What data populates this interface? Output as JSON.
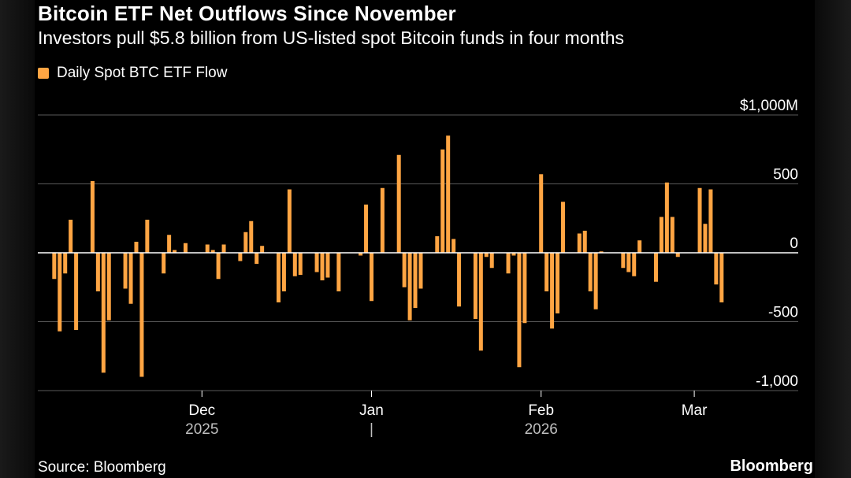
{
  "header": {
    "title": "Bitcoin ETF Net Outflows Since November",
    "subtitle": "Investors pull $5.8 billion from US-listed spot Bitcoin funds in four months"
  },
  "legend": {
    "label": "Daily Spot BTC ETF Flow"
  },
  "footer": {
    "source": "Source: Bloomberg",
    "brand": "Bloomberg"
  },
  "colors": {
    "bar": "#ffa543",
    "grid": "#5a5a5a",
    "zero": "#ffffff",
    "text": "#ffffff",
    "background": "#000000"
  },
  "chart_data": {
    "type": "bar",
    "title": "Bitcoin ETF Net Outflows Since November",
    "ylabel": "Daily Spot BTC ETF Flow ($M)",
    "ylim": [
      -1000,
      1000
    ],
    "y_ticks": [
      {
        "value": 1000,
        "label": "$1,000M"
      },
      {
        "value": 500,
        "label": "500"
      },
      {
        "value": 0,
        "label": "0"
      },
      {
        "value": -500,
        "label": "-500"
      },
      {
        "value": -1000,
        "label": "-1,000"
      }
    ],
    "x_ticks": [
      {
        "label": "Dec",
        "sublabel": "2025",
        "index": 28
      },
      {
        "label": "Jan",
        "sublabel": "|",
        "index": 59
      },
      {
        "label": "Feb",
        "sublabel": "2026",
        "index": 90
      },
      {
        "label": "Mar",
        "sublabel": "",
        "index": 118
      }
    ],
    "x_range": [
      -2,
      137
    ],
    "points": [
      {
        "i": 1,
        "v": -190
      },
      {
        "i": 2,
        "v": -570
      },
      {
        "i": 3,
        "v": -150
      },
      {
        "i": 4,
        "v": 240
      },
      {
        "i": 5,
        "v": -560
      },
      {
        "i": 8,
        "v": 520
      },
      {
        "i": 9,
        "v": -280
      },
      {
        "i": 10,
        "v": -870
      },
      {
        "i": 11,
        "v": -490
      },
      {
        "i": 14,
        "v": -260
      },
      {
        "i": 15,
        "v": -370
      },
      {
        "i": 16,
        "v": 80
      },
      {
        "i": 17,
        "v": -900
      },
      {
        "i": 18,
        "v": 240
      },
      {
        "i": 21,
        "v": -150
      },
      {
        "i": 22,
        "v": 130
      },
      {
        "i": 23,
        "v": 20
      },
      {
        "i": 25,
        "v": 70
      },
      {
        "i": 29,
        "v": 60
      },
      {
        "i": 30,
        "v": 20
      },
      {
        "i": 31,
        "v": -190
      },
      {
        "i": 32,
        "v": 60
      },
      {
        "i": 35,
        "v": -60
      },
      {
        "i": 36,
        "v": 150
      },
      {
        "i": 37,
        "v": 230
      },
      {
        "i": 38,
        "v": -80
      },
      {
        "i": 39,
        "v": 50
      },
      {
        "i": 42,
        "v": -360
      },
      {
        "i": 43,
        "v": -280
      },
      {
        "i": 44,
        "v": 460
      },
      {
        "i": 45,
        "v": -170
      },
      {
        "i": 46,
        "v": -160
      },
      {
        "i": 49,
        "v": -140
      },
      {
        "i": 50,
        "v": -200
      },
      {
        "i": 51,
        "v": -180
      },
      {
        "i": 53,
        "v": -280
      },
      {
        "i": 57,
        "v": -20
      },
      {
        "i": 58,
        "v": 350
      },
      {
        "i": 59,
        "v": -350
      },
      {
        "i": 61,
        "v": 470
      },
      {
        "i": 64,
        "v": 710
      },
      {
        "i": 65,
        "v": -250
      },
      {
        "i": 66,
        "v": -490
      },
      {
        "i": 67,
        "v": -400
      },
      {
        "i": 68,
        "v": -260
      },
      {
        "i": 71,
        "v": 120
      },
      {
        "i": 72,
        "v": 750
      },
      {
        "i": 73,
        "v": 850
      },
      {
        "i": 74,
        "v": 100
      },
      {
        "i": 75,
        "v": -390
      },
      {
        "i": 78,
        "v": -480
      },
      {
        "i": 79,
        "v": -710
      },
      {
        "i": 80,
        "v": -30
      },
      {
        "i": 81,
        "v": -110
      },
      {
        "i": 84,
        "v": -150
      },
      {
        "i": 85,
        "v": -20
      },
      {
        "i": 86,
        "v": -830
      },
      {
        "i": 87,
        "v": -510
      },
      {
        "i": 90,
        "v": 570
      },
      {
        "i": 91,
        "v": -280
      },
      {
        "i": 92,
        "v": -550
      },
      {
        "i": 93,
        "v": -440
      },
      {
        "i": 94,
        "v": 370
      },
      {
        "i": 97,
        "v": 140
      },
      {
        "i": 98,
        "v": 160
      },
      {
        "i": 99,
        "v": -280
      },
      {
        "i": 100,
        "v": -410
      },
      {
        "i": 101,
        "v": 10
      },
      {
        "i": 105,
        "v": -110
      },
      {
        "i": 106,
        "v": -140
      },
      {
        "i": 107,
        "v": -170
      },
      {
        "i": 108,
        "v": 90
      },
      {
        "i": 111,
        "v": -210
      },
      {
        "i": 112,
        "v": 260
      },
      {
        "i": 113,
        "v": 510
      },
      {
        "i": 114,
        "v": 260
      },
      {
        "i": 115,
        "v": -30
      },
      {
        "i": 119,
        "v": 470
      },
      {
        "i": 120,
        "v": 210
      },
      {
        "i": 121,
        "v": 460
      },
      {
        "i": 122,
        "v": -230
      },
      {
        "i": 123,
        "v": -360
      }
    ]
  }
}
